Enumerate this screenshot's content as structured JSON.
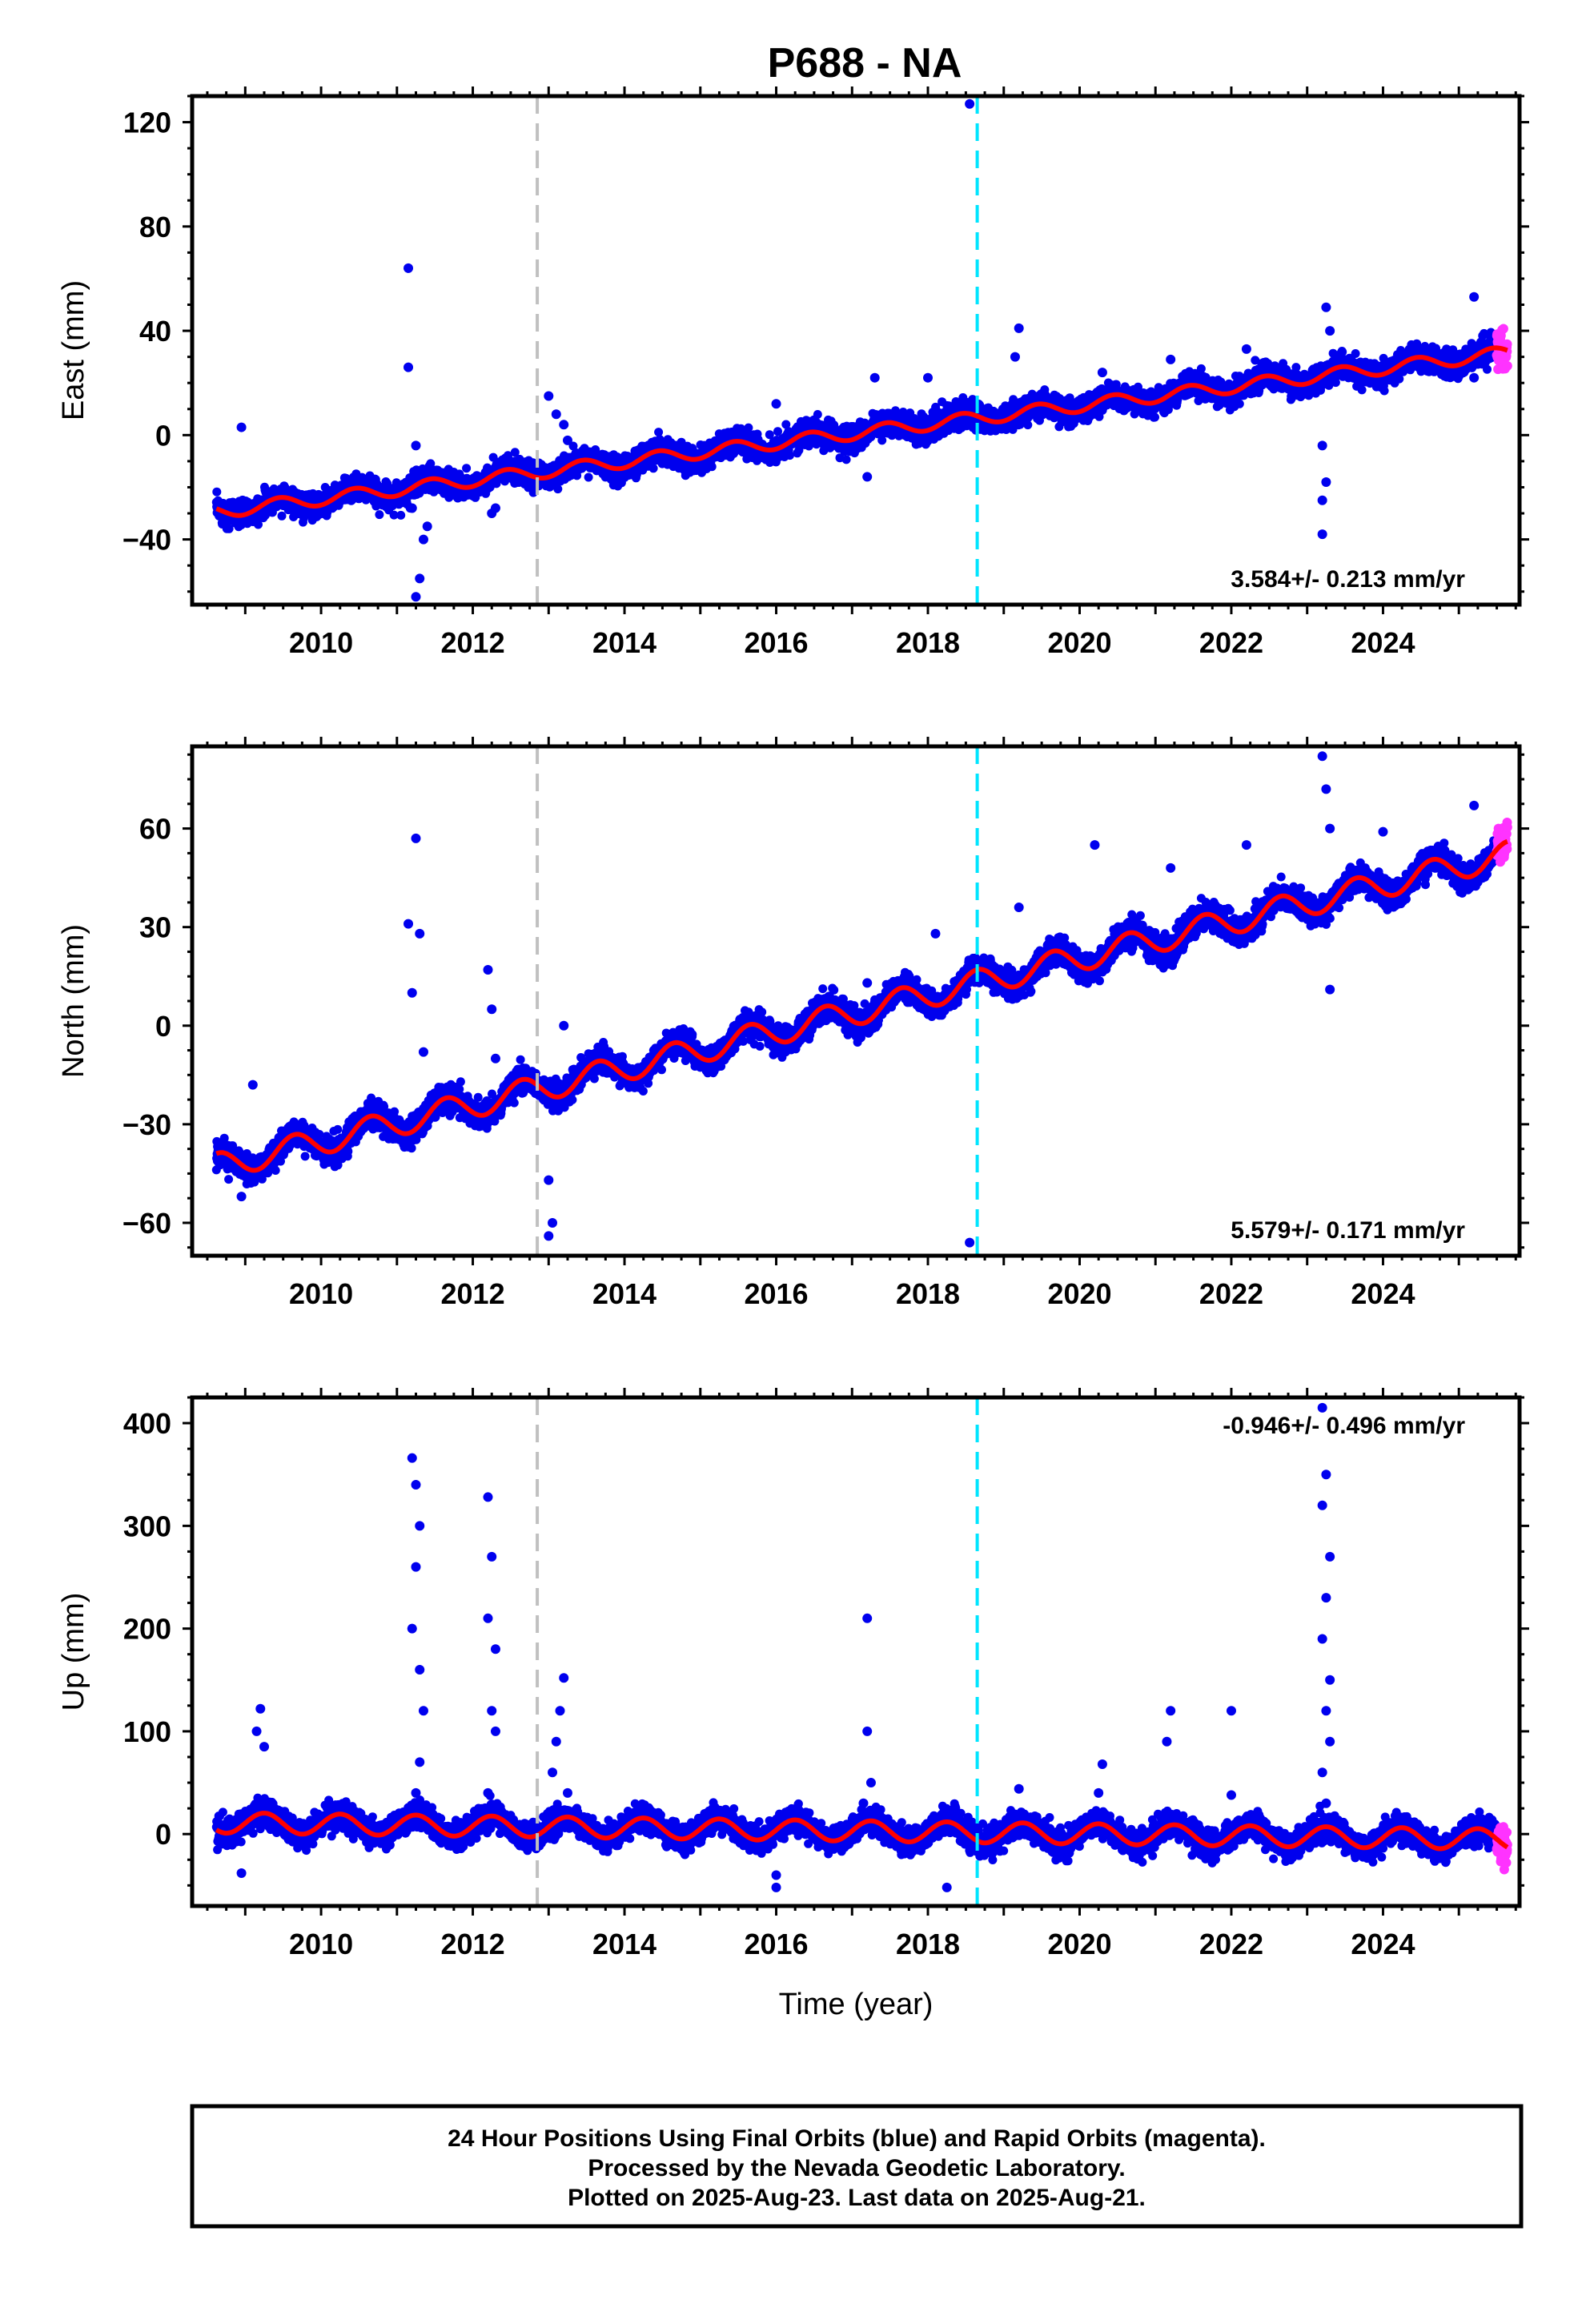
{
  "title": "P688 - NA",
  "caption": {
    "lines": [
      "24 Hour Positions Using Final Orbits (blue) and Rapid Orbits (magenta).",
      "Processed by the Nevada Geodetic Laboratory.",
      "Plotted on 2025-Aug-23. Last data on 2025-Aug-21."
    ]
  },
  "colors": {
    "final_orbits": "#0000ee",
    "rapid_orbits": "#ff33ff",
    "model": "#ff0000",
    "break_gray": "#c0c0c0",
    "break_cyan": "#00e5ff"
  },
  "chart_data": [
    {
      "type": "scatter",
      "ylabel": "East (mm)",
      "xlabel": "",
      "xlim": [
        2008.3,
        2025.8
      ],
      "ylim": [
        -65,
        130
      ],
      "yticks": [
        -40,
        0,
        40,
        80,
        120
      ],
      "xticks": [
        2010,
        2012,
        2014,
        2016,
        2018,
        2020,
        2022,
        2024
      ],
      "rate": {
        "value": 3.584,
        "sigma": 0.213,
        "label": "3.584+/- 0.213 mm/yr",
        "position": "bottom-right"
      },
      "offset": -29.5,
      "annual_amplitude": 2.5,
      "annual_phase": 1.2,
      "noise": 2.3,
      "outliers": [
        {
          "x": 2008.95,
          "y": 3
        },
        {
          "x": 2011.15,
          "y": 64
        },
        {
          "x": 2011.15,
          "y": 26
        },
        {
          "x": 2011.25,
          "y": -62
        },
        {
          "x": 2011.3,
          "y": -55
        },
        {
          "x": 2011.35,
          "y": -40
        },
        {
          "x": 2011.2,
          "y": -28
        },
        {
          "x": 2011.4,
          "y": -35
        },
        {
          "x": 2011.25,
          "y": -4
        },
        {
          "x": 2012.25,
          "y": -30
        },
        {
          "x": 2012.3,
          "y": -28
        },
        {
          "x": 2013.0,
          "y": 15
        },
        {
          "x": 2013.1,
          "y": 8
        },
        {
          "x": 2013.2,
          "y": 4
        },
        {
          "x": 2013.25,
          "y": -2
        },
        {
          "x": 2016.0,
          "y": 12
        },
        {
          "x": 2017.2,
          "y": -16
        },
        {
          "x": 2017.3,
          "y": 22
        },
        {
          "x": 2018.0,
          "y": 22
        },
        {
          "x": 2018.55,
          "y": 127
        },
        {
          "x": 2019.2,
          "y": 41
        },
        {
          "x": 2019.15,
          "y": 30
        },
        {
          "x": 2020.3,
          "y": 24
        },
        {
          "x": 2021.2,
          "y": 29
        },
        {
          "x": 2022.2,
          "y": 33
        },
        {
          "x": 2023.2,
          "y": -38
        },
        {
          "x": 2023.2,
          "y": -25
        },
        {
          "x": 2023.25,
          "y": -18
        },
        {
          "x": 2023.2,
          "y": -4
        },
        {
          "x": 2023.25,
          "y": 49
        },
        {
          "x": 2023.3,
          "y": 40
        },
        {
          "x": 2025.2,
          "y": 53
        },
        {
          "x": 2025.2,
          "y": 22
        }
      ],
      "breaks": [
        2012.85,
        2018.65
      ]
    },
    {
      "type": "scatter",
      "ylabel": "North (mm)",
      "xlabel": "",
      "xlim": [
        2008.3,
        2025.8
      ],
      "ylim": [
        -70,
        85
      ],
      "yticks": [
        -60,
        -30,
        0,
        30,
        60
      ],
      "xticks": [
        2010,
        2012,
        2014,
        2016,
        2018,
        2020,
        2022,
        2024
      ],
      "rate": {
        "value": 5.579,
        "sigma": 0.171,
        "label": "5.579+/- 0.171 mm/yr",
        "position": "bottom-right"
      },
      "offset": -43,
      "annual_amplitude": 4.0,
      "annual_phase": 0.4,
      "noise": 2.0,
      "outliers": [
        {
          "x": 2008.95,
          "y": -52
        },
        {
          "x": 2009.1,
          "y": -18
        },
        {
          "x": 2011.15,
          "y": 31
        },
        {
          "x": 2011.25,
          "y": 57
        },
        {
          "x": 2011.3,
          "y": 28
        },
        {
          "x": 2011.2,
          "y": 10
        },
        {
          "x": 2011.35,
          "y": -8
        },
        {
          "x": 2012.2,
          "y": 17
        },
        {
          "x": 2012.25,
          "y": 5
        },
        {
          "x": 2012.3,
          "y": -10
        },
        {
          "x": 2013.0,
          "y": -64
        },
        {
          "x": 2013.05,
          "y": -60
        },
        {
          "x": 2013.0,
          "y": -47
        },
        {
          "x": 2013.2,
          "y": 0
        },
        {
          "x": 2017.2,
          "y": 13
        },
        {
          "x": 2017.3,
          "y": 7
        },
        {
          "x": 2018.1,
          "y": 28
        },
        {
          "x": 2018.55,
          "y": -66
        },
        {
          "x": 2019.2,
          "y": 36
        },
        {
          "x": 2020.2,
          "y": 55
        },
        {
          "x": 2021.2,
          "y": 48
        },
        {
          "x": 2022.2,
          "y": 55
        },
        {
          "x": 2023.2,
          "y": 82
        },
        {
          "x": 2023.25,
          "y": 72
        },
        {
          "x": 2023.3,
          "y": 60
        },
        {
          "x": 2023.3,
          "y": 11
        },
        {
          "x": 2024.0,
          "y": 59
        },
        {
          "x": 2025.2,
          "y": 67
        }
      ],
      "breaks": [
        2012.85,
        2018.65
      ]
    },
    {
      "type": "scatter",
      "ylabel": "Up (mm)",
      "xlabel": "Time (year)",
      "xlim": [
        2008.3,
        2025.8
      ],
      "ylim": [
        -70,
        425
      ],
      "yticks": [
        0,
        100,
        200,
        300,
        400
      ],
      "xticks": [
        2010,
        2012,
        2014,
        2016,
        2018,
        2020,
        2022,
        2024
      ],
      "rate": {
        "value": -0.946,
        "sigma": 0.496,
        "label": "-0.946+/- 0.496 mm/yr",
        "position": "top-right"
      },
      "offset": 11,
      "slope": -0.946,
      "annual_amplitude": 10,
      "annual_phase": 0.0,
      "noise": 6,
      "outliers": [
        {
          "x": 2009.2,
          "y": 122
        },
        {
          "x": 2009.15,
          "y": 100
        },
        {
          "x": 2009.25,
          "y": 85
        },
        {
          "x": 2008.95,
          "y": -38
        },
        {
          "x": 2011.2,
          "y": 366
        },
        {
          "x": 2011.25,
          "y": 340
        },
        {
          "x": 2011.3,
          "y": 300
        },
        {
          "x": 2011.25,
          "y": 260
        },
        {
          "x": 2011.2,
          "y": 200
        },
        {
          "x": 2011.3,
          "y": 160
        },
        {
          "x": 2011.35,
          "y": 120
        },
        {
          "x": 2011.3,
          "y": 70
        },
        {
          "x": 2011.25,
          "y": 40
        },
        {
          "x": 2012.2,
          "y": 328
        },
        {
          "x": 2012.25,
          "y": 270
        },
        {
          "x": 2012.2,
          "y": 210
        },
        {
          "x": 2012.3,
          "y": 180
        },
        {
          "x": 2012.25,
          "y": 120
        },
        {
          "x": 2012.3,
          "y": 100
        },
        {
          "x": 2012.2,
          "y": 40
        },
        {
          "x": 2013.2,
          "y": 152
        },
        {
          "x": 2013.15,
          "y": 120
        },
        {
          "x": 2013.1,
          "y": 90
        },
        {
          "x": 2013.05,
          "y": 60
        },
        {
          "x": 2013.25,
          "y": 40
        },
        {
          "x": 2016.0,
          "y": -52
        },
        {
          "x": 2016.0,
          "y": -40
        },
        {
          "x": 2017.2,
          "y": 210
        },
        {
          "x": 2017.2,
          "y": 100
        },
        {
          "x": 2017.25,
          "y": 50
        },
        {
          "x": 2017.15,
          "y": 30
        },
        {
          "x": 2018.25,
          "y": -52
        },
        {
          "x": 2019.2,
          "y": 44
        },
        {
          "x": 2020.3,
          "y": 68
        },
        {
          "x": 2020.25,
          "y": 40
        },
        {
          "x": 2021.2,
          "y": 120
        },
        {
          "x": 2021.15,
          "y": 90
        },
        {
          "x": 2022.0,
          "y": 120
        },
        {
          "x": 2022.0,
          "y": 38
        },
        {
          "x": 2023.2,
          "y": 415
        },
        {
          "x": 2023.25,
          "y": 350
        },
        {
          "x": 2023.2,
          "y": 320
        },
        {
          "x": 2023.3,
          "y": 270
        },
        {
          "x": 2023.25,
          "y": 230
        },
        {
          "x": 2023.2,
          "y": 190
        },
        {
          "x": 2023.3,
          "y": 150
        },
        {
          "x": 2023.25,
          "y": 120
        },
        {
          "x": 2023.3,
          "y": 90
        },
        {
          "x": 2023.2,
          "y": 60
        },
        {
          "x": 2023.25,
          "y": 30
        }
      ],
      "breaks": [
        2012.85,
        2018.65
      ]
    }
  ]
}
